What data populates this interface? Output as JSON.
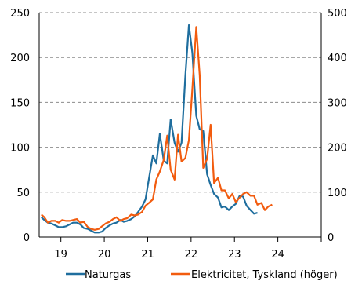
{
  "chart_data": {
    "type": "line",
    "title": "",
    "xlabel": "",
    "ylabel": "",
    "ylabel_right": "",
    "x_ticks": [
      "19",
      "20",
      "21",
      "22",
      "23",
      "24"
    ],
    "x_range": [
      2018.5,
      2025.0
    ],
    "ylim_left": [
      0,
      250
    ],
    "ylim_right": [
      0,
      500
    ],
    "y_ticks_left": [
      "0",
      "50",
      "100",
      "150",
      "200",
      "250"
    ],
    "y_ticks_right": [
      "0",
      "100",
      "200",
      "300",
      "400",
      "500"
    ],
    "grid": "horizontal dashed",
    "legend_position": "bottom",
    "series": [
      {
        "name": "Naturgas",
        "axis": "left",
        "color": "#1F6E9E",
        "x": [
          2018.55,
          2018.62,
          2018.7,
          2018.78,
          2018.87,
          2018.95,
          2019.03,
          2019.12,
          2019.2,
          2019.28,
          2019.37,
          2019.45,
          2019.53,
          2019.62,
          2019.7,
          2019.78,
          2019.87,
          2019.95,
          2020.03,
          2020.12,
          2020.2,
          2020.28,
          2020.37,
          2020.45,
          2020.53,
          2020.62,
          2020.7,
          2020.78,
          2020.87,
          2020.95,
          2021.03,
          2021.12,
          2021.2,
          2021.28,
          2021.37,
          2021.45,
          2021.53,
          2021.62,
          2021.7,
          2021.78,
          2021.87,
          2021.95,
          2022.03,
          2022.12,
          2022.2,
          2022.28,
          2022.37,
          2022.45,
          2022.53,
          2022.62,
          2022.7,
          2022.78,
          2022.87,
          2022.95,
          2023.03,
          2023.12,
          2023.2,
          2023.28,
          2023.37,
          2023.45,
          2023.53,
          2023.62,
          2023.7,
          2023.78,
          2023.87
        ],
        "values": [
          22,
          19,
          16,
          15,
          13,
          11,
          11,
          12,
          14,
          16,
          16,
          14,
          10,
          9,
          7,
          5,
          5,
          6,
          10,
          13,
          15,
          16,
          19,
          17,
          18,
          20,
          23,
          28,
          34,
          42,
          65,
          91,
          82,
          115,
          85,
          82,
          131,
          105,
          95,
          105,
          180,
          236,
          205,
          135,
          120,
          118,
          70,
          58,
          48,
          44,
          33,
          34,
          30,
          34,
          37,
          46,
          45,
          35,
          30,
          26,
          27,
          null,
          null,
          null,
          null
        ]
      },
      {
        "name": "Elektricitet, Tyskland (höger)",
        "axis": "right",
        "color": "#F25C0F",
        "x": [
          2018.55,
          2018.62,
          2018.7,
          2018.78,
          2018.87,
          2018.95,
          2019.03,
          2019.12,
          2019.2,
          2019.28,
          2019.37,
          2019.45,
          2019.53,
          2019.62,
          2019.7,
          2019.78,
          2019.87,
          2019.95,
          2020.03,
          2020.12,
          2020.2,
          2020.28,
          2020.37,
          2020.45,
          2020.53,
          2020.62,
          2020.7,
          2020.78,
          2020.87,
          2020.95,
          2021.03,
          2021.12,
          2021.2,
          2021.28,
          2021.37,
          2021.45,
          2021.53,
          2021.62,
          2021.7,
          2021.78,
          2021.87,
          2021.95,
          2022.03,
          2022.12,
          2022.2,
          2022.28,
          2022.37,
          2022.45,
          2022.53,
          2022.62,
          2022.7,
          2022.78,
          2022.87,
          2022.95,
          2023.03,
          2023.12,
          2023.2,
          2023.28,
          2023.37,
          2023.45,
          2023.53,
          2023.62,
          2023.7,
          2023.78,
          2023.87
        ],
        "values": [
          50,
          44,
          32,
          36,
          36,
          32,
          38,
          36,
          36,
          38,
          40,
          32,
          34,
          22,
          18,
          16,
          18,
          24,
          30,
          34,
          40,
          44,
          36,
          40,
          42,
          50,
          48,
          50,
          56,
          70,
          76,
          84,
          128,
          146,
          172,
          226,
          150,
          128,
          228,
          168,
          176,
          216,
          330,
          468,
          360,
          154,
          174,
          250,
          120,
          132,
          104,
          104,
          86,
          96,
          78,
          88,
          96,
          100,
          92,
          92,
          72,
          76,
          60,
          68,
          72
        ]
      }
    ]
  }
}
